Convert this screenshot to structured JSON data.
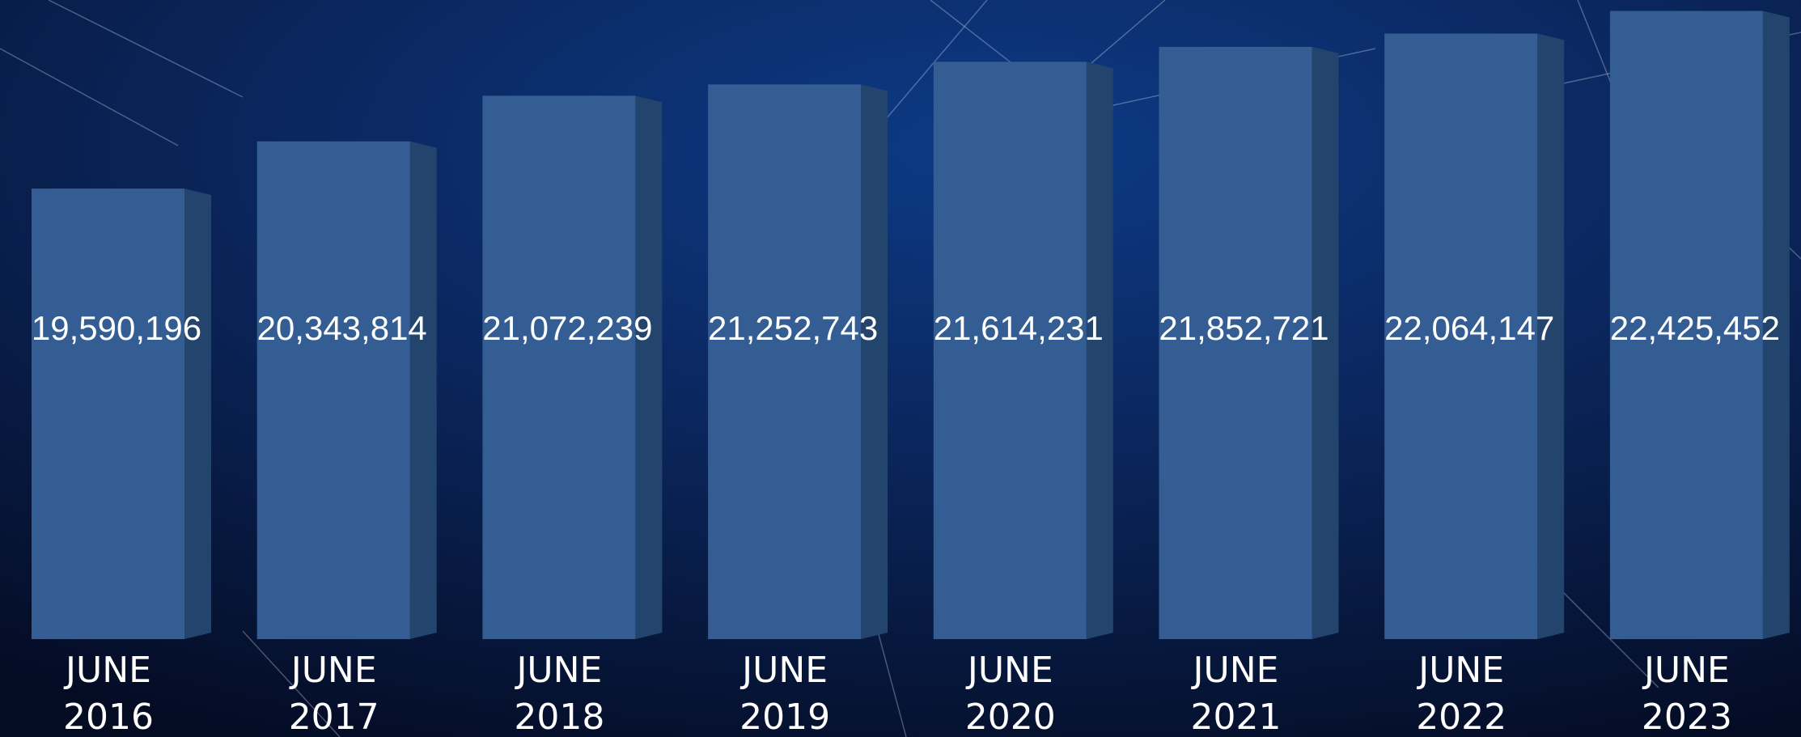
{
  "chart_data": {
    "type": "bar",
    "categories": [
      "JUNE 2016",
      "JUNE 2017",
      "JUNE 2018",
      "JUNE 2019",
      "JUNE 2020",
      "JUNE 2021",
      "JUNE 2022",
      "JUNE 2023"
    ],
    "values": [
      19590196,
      20343814,
      21072239,
      21252743,
      21614231,
      21852721,
      22064147,
      22425452
    ],
    "value_labels": [
      "19,590,196",
      "20,343,814",
      "21,072,239",
      "21,252,743",
      "21,614,231",
      "21,852,721",
      "22,064,147",
      "22,425,452"
    ],
    "color": "#345e93",
    "ylim": [
      12400000,
      22600000
    ]
  }
}
